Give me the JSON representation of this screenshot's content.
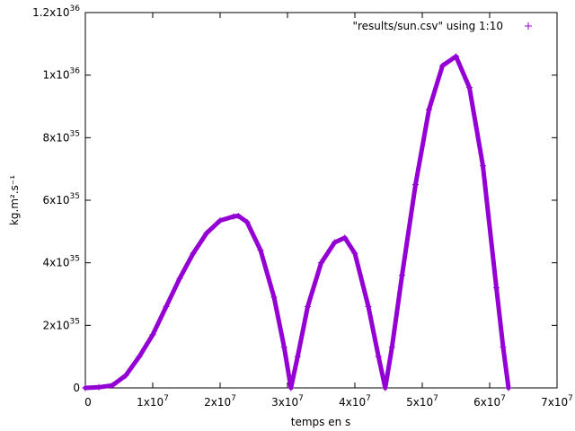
{
  "chart_data": {
    "type": "scatter",
    "title": "",
    "xlabel": "temps en s",
    "ylabel": "kg.m².s⁻¹",
    "xlim": [
      0,
      70000000
    ],
    "ylim": [
      0,
      1.2e+36
    ],
    "grid": false,
    "legend_position": "top-right",
    "x_ticks": [
      {
        "value": 0,
        "mant": "0",
        "exp": ""
      },
      {
        "value": 10000000,
        "mant": "1x10",
        "exp": "7"
      },
      {
        "value": 20000000,
        "mant": "2x10",
        "exp": "7"
      },
      {
        "value": 30000000,
        "mant": "3x10",
        "exp": "7"
      },
      {
        "value": 40000000,
        "mant": "4x10",
        "exp": "7"
      },
      {
        "value": 50000000,
        "mant": "5x10",
        "exp": "7"
      },
      {
        "value": 60000000,
        "mant": "6x10",
        "exp": "7"
      },
      {
        "value": 70000000,
        "mant": "7x10",
        "exp": "7"
      }
    ],
    "y_ticks": [
      {
        "value": 0,
        "mant": "0",
        "exp": ""
      },
      {
        "value": 2e+35,
        "mant": "2x10",
        "exp": "35"
      },
      {
        "value": 4e+35,
        "mant": "4x10",
        "exp": "35"
      },
      {
        "value": 6e+35,
        "mant": "6x10",
        "exp": "35"
      },
      {
        "value": 8e+35,
        "mant": "8x10",
        "exp": "35"
      },
      {
        "value": 1e+36,
        "mant": "1x10",
        "exp": "36"
      },
      {
        "value": 1.2e+36,
        "mant": "1.2x10",
        "exp": "36"
      }
    ],
    "series": [
      {
        "name": "\"results/sun.csv\" using 1:10",
        "color": "#9400d3",
        "marker": "+",
        "x": [
          0,
          2000000,
          4000000,
          6000000,
          8000000,
          10000000,
          12000000,
          14000000,
          16000000,
          18000000,
          20000000,
          22000000,
          22700000,
          24000000,
          26000000,
          28000000,
          29500000,
          30500000,
          31500000,
          33000000,
          35000000,
          37000000,
          38500000,
          40000000,
          42000000,
          43500000,
          44500000,
          45500000,
          47000000,
          49000000,
          51000000,
          53000000,
          55000000,
          57000000,
          59000000,
          61000000,
          62000000,
          62800000
        ],
        "y": [
          0,
          2e+33,
          8e+33,
          4e+34,
          1e+35,
          1.7e+35,
          2.6e+35,
          3.5e+35,
          4.3e+35,
          4.95e+35,
          5.35e+35,
          5.48e+35,
          5.5e+35,
          5.3e+35,
          4.4e+35,
          2.9e+35,
          1.3e+35,
          0,
          1e+35,
          2.6e+35,
          4e+35,
          4.65e+35,
          4.8e+35,
          4.3e+35,
          2.6e+35,
          1e+35,
          0,
          1.3e+35,
          3.6e+35,
          6.5e+35,
          8.9e+35,
          1.03e+36,
          1.06e+36,
          9.6e+35,
          7.1e+35,
          3.2e+35,
          1.3e+35,
          0
        ]
      }
    ]
  }
}
